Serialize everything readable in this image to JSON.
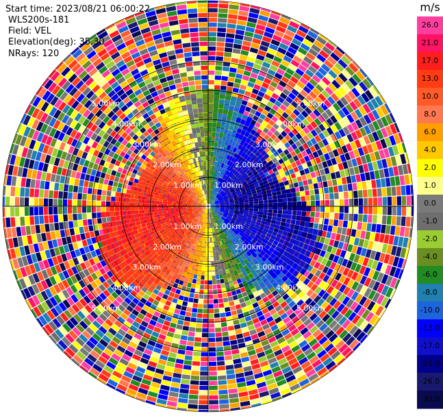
{
  "header": {
    "start_time": "Start time: 2023/08/21 06:00:22",
    "instrument": "WLS200s-181",
    "field": "Field: VEL",
    "elevation": "Elevation(deg): 35.30",
    "nrays": "NRays: 120"
  },
  "chart_data": {
    "type": "heatmap",
    "projection": "polar-ppi",
    "field": "VEL",
    "units": "m/s",
    "nrays": 120,
    "max_range_km": 7,
    "range_rings_km": [
      1,
      2,
      3,
      4,
      5
    ],
    "ring_labels": [
      "1.00km",
      "2.00km",
      "3.00km",
      "4.00km",
      "5.00km"
    ],
    "colorbar": {
      "title": "m/s",
      "ticks": [
        "26.0",
        "21.0",
        "17.0",
        "13.0",
        "10.0",
        "8.0",
        "6.0",
        "4.0",
        "2.0",
        "1.0",
        "0.0",
        "-1.0",
        "-2.0",
        "-4.0",
        "-6.0",
        "-8.0",
        "-10.0",
        "-13.0",
        "-17.0",
        "-21.0",
        "-26.0",
        "-30.0"
      ],
      "colors": [
        "#ff3fa0",
        "#ff1464",
        "#ff1e1e",
        "#ff3c14",
        "#ff5a28",
        "#ff7850",
        "#ffa000",
        "#ffc800",
        "#ffff00",
        "#ffff8c",
        "#7a7a7a",
        "#6e6e6e",
        "#9acd32",
        "#6b8e23",
        "#228b22",
        "#2080b0",
        "#1e64dc",
        "#0000ff",
        "#1010cc",
        "#00008b",
        "#191970",
        "#0a0a50"
      ]
    },
    "velocity_pattern": {
      "positive_sector": "west-northwest (red/orange)",
      "negative_sector": "east-southeast (blue)",
      "valid_range_km": 3,
      "beyond_valid_range": "noise"
    }
  }
}
